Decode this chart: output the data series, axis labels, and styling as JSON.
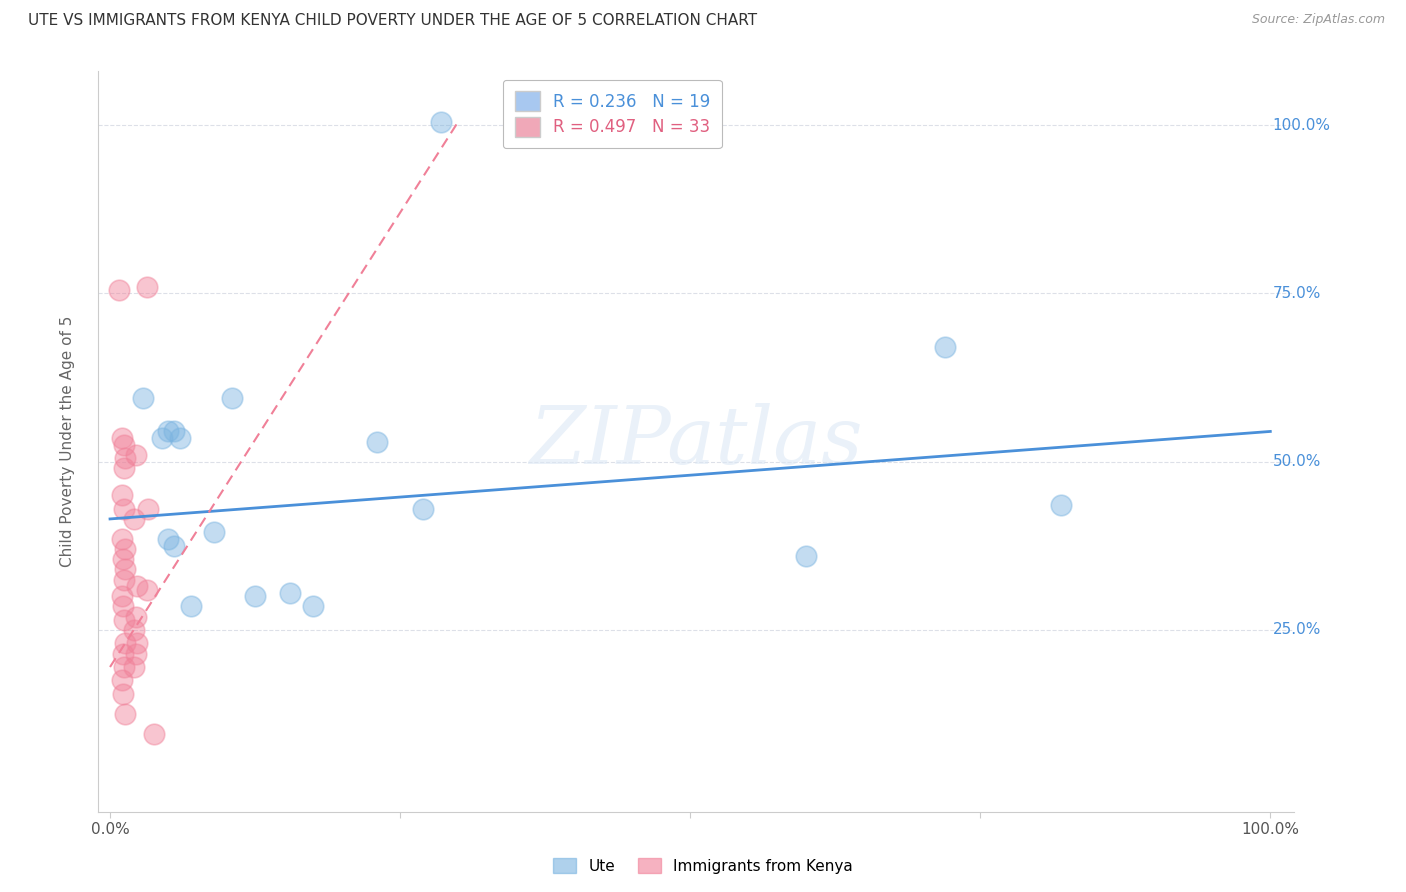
{
  "title": "UTE VS IMMIGRANTS FROM KENYA CHILD POVERTY UNDER THE AGE OF 5 CORRELATION CHART",
  "source": "Source: ZipAtlas.com",
  "ylabel": "Child Poverty Under the Age of 5",
  "watermark": "ZIPatlas",
  "xlim": [
    -0.01,
    1.02
  ],
  "ylim": [
    -0.02,
    1.08
  ],
  "ute_color": "#7ab3e0",
  "kenya_color": "#f08098",
  "ute_scatter": [
    [
      0.028,
      0.595
    ],
    [
      0.045,
      0.535
    ],
    [
      0.05,
      0.545
    ],
    [
      0.055,
      0.545
    ],
    [
      0.06,
      0.535
    ],
    [
      0.05,
      0.385
    ],
    [
      0.055,
      0.375
    ],
    [
      0.07,
      0.285
    ],
    [
      0.09,
      0.395
    ],
    [
      0.105,
      0.595
    ],
    [
      0.125,
      0.3
    ],
    [
      0.155,
      0.305
    ],
    [
      0.175,
      0.285
    ],
    [
      0.23,
      0.53
    ],
    [
      0.27,
      0.43
    ],
    [
      0.285,
      1.005
    ],
    [
      0.6,
      0.36
    ],
    [
      0.72,
      0.67
    ],
    [
      0.82,
      0.435
    ]
  ],
  "kenya_scatter": [
    [
      0.008,
      0.755
    ],
    [
      0.01,
      0.535
    ],
    [
      0.012,
      0.525
    ],
    [
      0.013,
      0.505
    ],
    [
      0.012,
      0.49
    ],
    [
      0.01,
      0.45
    ],
    [
      0.012,
      0.43
    ],
    [
      0.01,
      0.385
    ],
    [
      0.013,
      0.37
    ],
    [
      0.011,
      0.355
    ],
    [
      0.013,
      0.34
    ],
    [
      0.012,
      0.325
    ],
    [
      0.01,
      0.3
    ],
    [
      0.011,
      0.285
    ],
    [
      0.012,
      0.265
    ],
    [
      0.013,
      0.23
    ],
    [
      0.011,
      0.215
    ],
    [
      0.012,
      0.195
    ],
    [
      0.01,
      0.175
    ],
    [
      0.011,
      0.155
    ],
    [
      0.013,
      0.125
    ],
    [
      0.022,
      0.51
    ],
    [
      0.021,
      0.415
    ],
    [
      0.023,
      0.315
    ],
    [
      0.022,
      0.27
    ],
    [
      0.021,
      0.25
    ],
    [
      0.023,
      0.23
    ],
    [
      0.022,
      0.215
    ],
    [
      0.021,
      0.195
    ],
    [
      0.032,
      0.76
    ],
    [
      0.033,
      0.43
    ],
    [
      0.032,
      0.31
    ],
    [
      0.038,
      0.095
    ]
  ],
  "ute_trend_x": [
    0.0,
    1.0
  ],
  "ute_trend_y": [
    0.415,
    0.545
  ],
  "kenya_trend_x": [
    0.0,
    0.3
  ],
  "kenya_trend_y": [
    0.195,
    1.005
  ],
  "bg_color": "#ffffff",
  "grid_color": "#dde0e8",
  "axis_color": "#cccccc",
  "right_tick_color": "#4a90d9",
  "legend_r1": "R = 0.236   N = 19",
  "legend_r2": "R = 0.497   N = 33",
  "legend_color1": "#a8c8f0",
  "legend_color2": "#f0a8b8",
  "legend_text_color1": "#4a90d9",
  "legend_text_color2": "#e06080",
  "bottom_legend_labels": [
    "Ute",
    "Immigrants from Kenya"
  ]
}
